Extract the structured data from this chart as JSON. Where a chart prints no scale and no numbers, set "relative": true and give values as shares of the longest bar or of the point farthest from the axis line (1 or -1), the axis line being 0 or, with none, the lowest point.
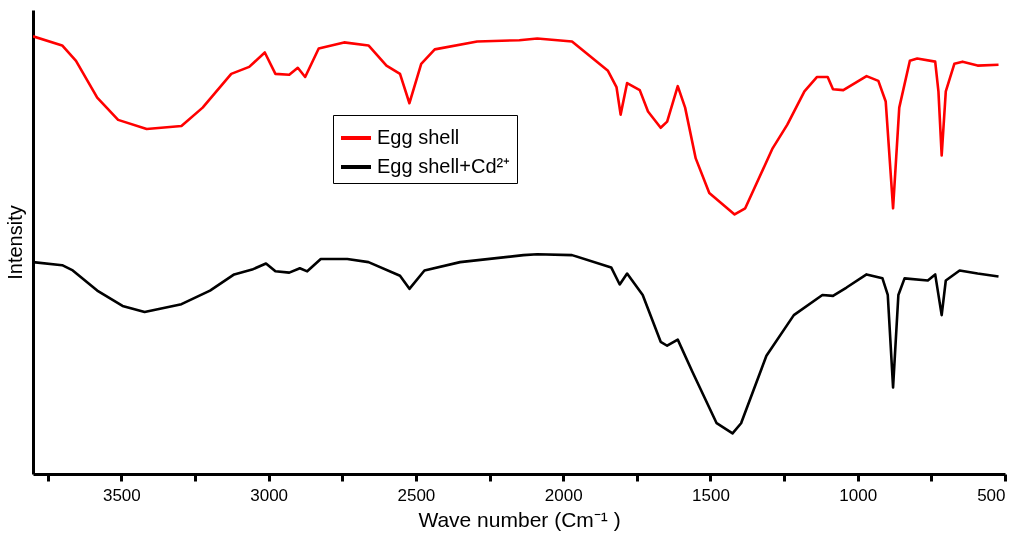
{
  "chart_data": {
    "type": "line",
    "relative": true,
    "xlabel": "Wave number (Cm⁻¹ )",
    "ylabel": "Intensity",
    "xlim": [
      3800,
      500
    ],
    "xticks": [
      {
        "value": 3750,
        "label": null
      },
      3500,
      {
        "value": 3250,
        "label": null
      },
      3000,
      {
        "value": 2750,
        "label": null
      },
      2500,
      {
        "value": 2250,
        "label": null
      },
      2000,
      {
        "value": 1750,
        "label": null
      },
      1500,
      {
        "value": 1250,
        "label": null
      },
      1000,
      {
        "value": 750,
        "label": null
      },
      500
    ],
    "legend": "top",
    "grid": false,
    "marker": "none",
    "line_style": "solid",
    "series": [
      {
        "name": "Egg shell",
        "color": "#ff0000",
        "x": [
          3800,
          3701,
          3654,
          3582,
          3511,
          3414,
          3296,
          3224,
          3127,
          3066,
          3013,
          2977,
          2930,
          2901,
          2876,
          2830,
          2744,
          2661,
          2600,
          2554,
          2522,
          2482,
          2436,
          2292,
          2149,
          2088,
          1970,
          1848,
          1819,
          1805,
          1783,
          1740,
          1712,
          1669,
          1647,
          1611,
          1586,
          1550,
          1504,
          1418,
          1382,
          1289,
          1239,
          1181,
          1138,
          1102,
          1084,
          1049,
          970,
          930,
          905,
          880,
          859,
          823,
          798,
          737,
          726,
          715,
          701,
          672,
          644,
          593,
          522
        ],
        "values": [
          1.0,
          0.979,
          0.944,
          0.86,
          0.809,
          0.788,
          0.795,
          0.837,
          0.914,
          0.93,
          0.963,
          0.914,
          0.912,
          0.928,
          0.907,
          0.972,
          0.986,
          0.979,
          0.933,
          0.914,
          0.847,
          0.937,
          0.97,
          0.988,
          0.991,
          0.995,
          0.988,
          0.921,
          0.884,
          0.821,
          0.893,
          0.877,
          0.828,
          0.791,
          0.805,
          0.886,
          0.837,
          0.721,
          0.642,
          0.593,
          0.607,
          0.744,
          0.798,
          0.874,
          0.907,
          0.907,
          0.879,
          0.877,
          0.909,
          0.898,
          0.851,
          0.607,
          0.837,
          0.944,
          0.949,
          0.942,
          0.874,
          0.728,
          0.874,
          0.937,
          0.942,
          0.933,
          0.935
        ]
      },
      {
        "name": "Egg shell+Cd²⁺",
        "color": "#000000",
        "x": [
          3800,
          3701,
          3665,
          3582,
          3496,
          3421,
          3296,
          3199,
          3117,
          3056,
          3009,
          2977,
          2930,
          2894,
          2869,
          2823,
          2733,
          2661,
          2554,
          2522,
          2471,
          2350,
          2135,
          2088,
          1970,
          1837,
          1808,
          1783,
          1730,
          1669,
          1647,
          1611,
          1561,
          1479,
          1425,
          1396,
          1310,
          1217,
          1120,
          1084,
          1038,
          970,
          916,
          898,
          880,
          862,
          841,
          762,
          737,
          715,
          701,
          654,
          593,
          522
        ],
        "values": [
          0.484,
          0.477,
          0.465,
          0.419,
          0.384,
          0.37,
          0.388,
          0.419,
          0.456,
          0.467,
          0.481,
          0.463,
          0.46,
          0.47,
          0.463,
          0.491,
          0.491,
          0.484,
          0.453,
          0.423,
          0.465,
          0.484,
          0.5,
          0.502,
          0.5,
          0.472,
          0.433,
          0.458,
          0.409,
          0.302,
          0.293,
          0.307,
          0.233,
          0.116,
          0.093,
          0.116,
          0.27,
          0.363,
          0.409,
          0.407,
          0.426,
          0.456,
          0.447,
          0.409,
          0.198,
          0.409,
          0.447,
          0.442,
          0.456,
          0.363,
          0.442,
          0.465,
          0.458,
          0.451
        ]
      }
    ]
  }
}
